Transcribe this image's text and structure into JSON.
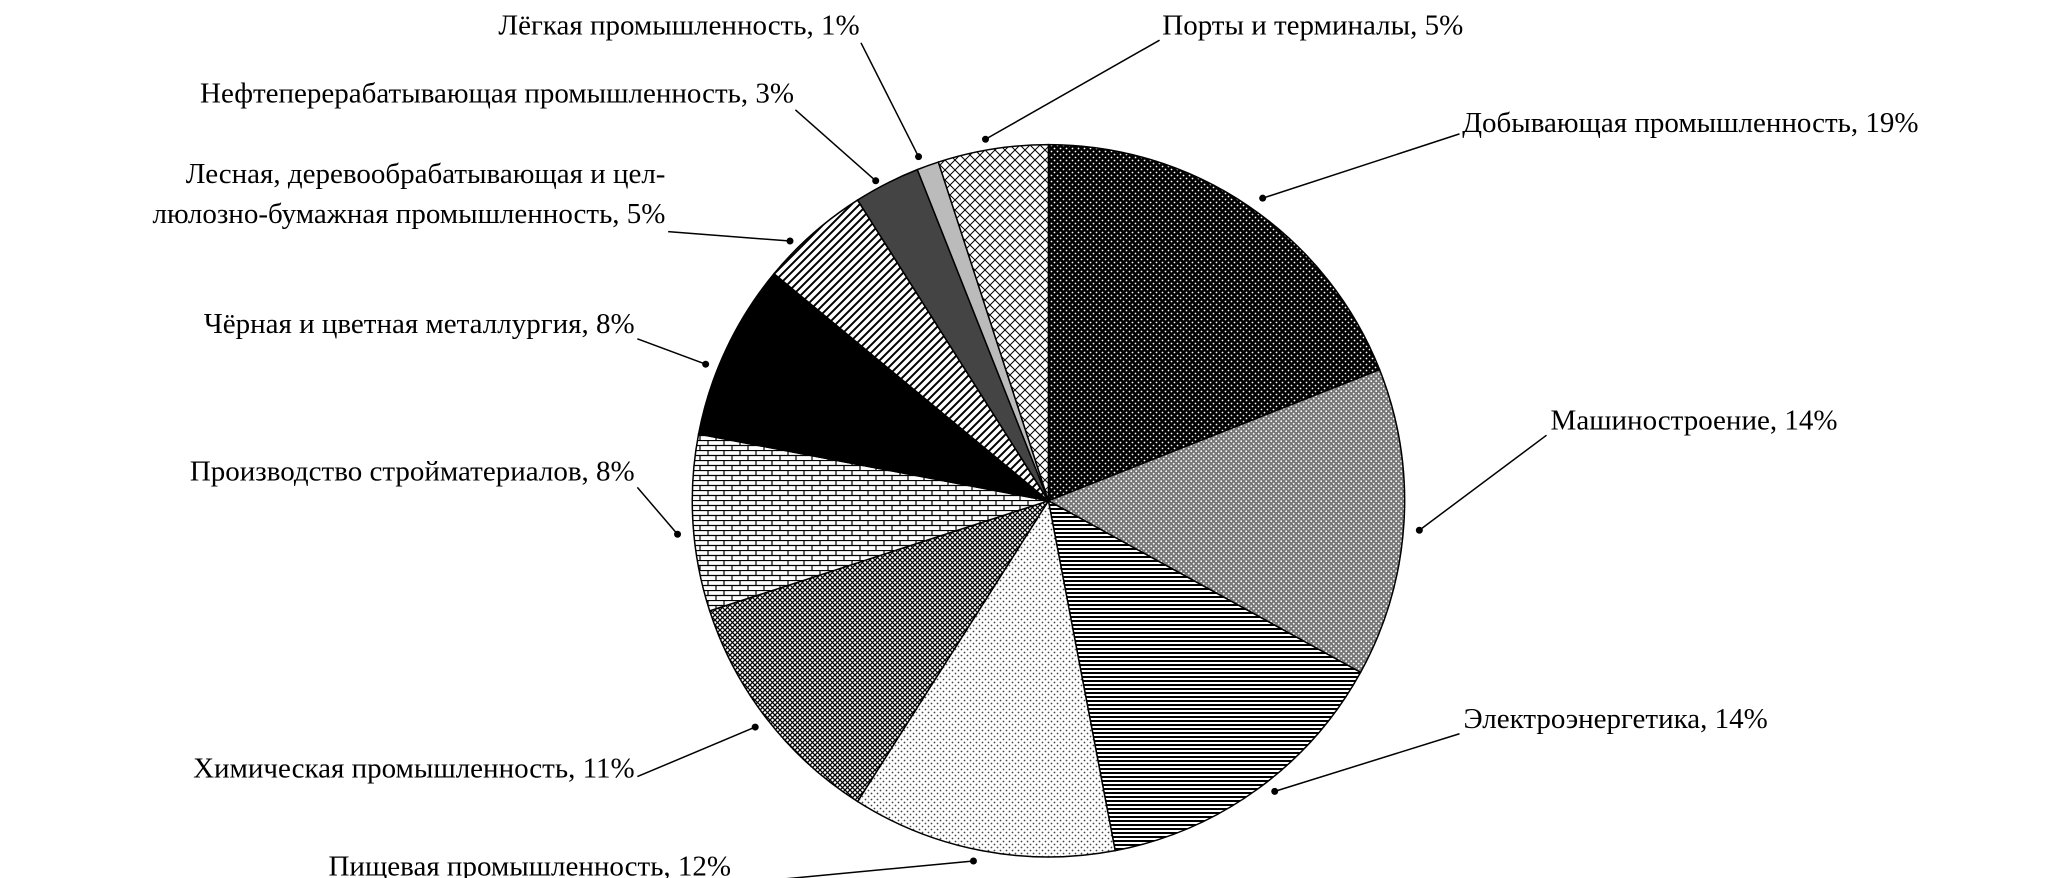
{
  "chart_data": {
    "type": "pie",
    "categories": [
      "Добывающая промышленность, 19%",
      "Машиностроение, 14%",
      "Электроэнергетика, 14%",
      "Пищевая промышленность, 12%",
      "Химическая промышленность, 11%",
      "Производство стройматериалов, 8%",
      "Чёрная и цветная металлургия, 8%",
      "Лесная, деревообрабатывающая и цел-\nлюлозно-бумажная промышленность, 5%",
      "Нефтеперерабатывающая промышленность, 3%",
      "Лёгкая промышленность, 1%",
      "Порты и терминалы, 5%"
    ],
    "values": [
      19,
      14,
      14,
      12,
      11,
      8,
      8,
      5,
      3,
      1,
      5
    ]
  }
}
